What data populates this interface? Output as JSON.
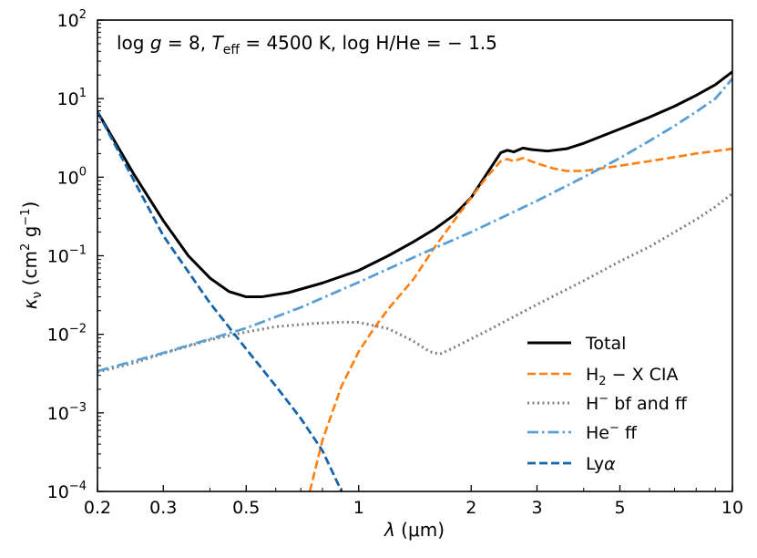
{
  "chart_data": {
    "type": "line",
    "x_scale": "log",
    "y_scale": "log",
    "xlim": [
      0.2,
      10
    ],
    "ylim": [
      0.0001,
      100
    ],
    "x_ticks": [
      {
        "value": 0.2,
        "label": "0.2"
      },
      {
        "value": 0.3,
        "label": "0.3"
      },
      {
        "value": 0.5,
        "label": "0.5"
      },
      {
        "value": 1,
        "label": "1"
      },
      {
        "value": 2,
        "label": "2"
      },
      {
        "value": 3,
        "label": "3"
      },
      {
        "value": 5,
        "label": "5"
      },
      {
        "value": 10,
        "label": "10"
      }
    ],
    "y_ticks": [
      {
        "value": 0.0001,
        "base": "10",
        "exp": "−4"
      },
      {
        "value": 0.001,
        "base": "10",
        "exp": "−3"
      },
      {
        "value": 0.01,
        "base": "10",
        "exp": "−2"
      },
      {
        "value": 0.1,
        "base": "10",
        "exp": "−1"
      },
      {
        "value": 1,
        "base": "10",
        "exp": "0"
      },
      {
        "value": 10,
        "base": "10",
        "exp": "1"
      },
      {
        "value": 100,
        "base": "10",
        "exp": "2"
      }
    ],
    "xlabel": {
      "symbol": "λ",
      "unit": " (μm)"
    },
    "ylabel": {
      "symbol": "κ",
      "sub": "ν",
      "pre": " (cm",
      "sup1": "2",
      "mid": " g",
      "sup2": "−1",
      "post": ")"
    },
    "annotation": {
      "part1": "log ",
      "g": "g",
      "part2": " = 8, ",
      "T": "T",
      "sub": "eff",
      "part3": " = 4500 K, log H/He = − 1.5"
    },
    "legend_position": "lower-right",
    "series": [
      {
        "name": "Total",
        "legend_label": "Total",
        "color": "#000000",
        "dash": "solid",
        "width": 3,
        "points": [
          [
            0.2,
            6.8
          ],
          [
            0.25,
            1.1
          ],
          [
            0.3,
            0.28
          ],
          [
            0.35,
            0.1
          ],
          [
            0.4,
            0.052
          ],
          [
            0.45,
            0.035
          ],
          [
            0.5,
            0.03
          ],
          [
            0.55,
            0.03
          ],
          [
            0.65,
            0.034
          ],
          [
            0.8,
            0.045
          ],
          [
            1.0,
            0.065
          ],
          [
            1.2,
            0.1
          ],
          [
            1.4,
            0.15
          ],
          [
            1.6,
            0.22
          ],
          [
            1.8,
            0.33
          ],
          [
            2.0,
            0.55
          ],
          [
            2.2,
            1.1
          ],
          [
            2.4,
            2.05
          ],
          [
            2.5,
            2.2
          ],
          [
            2.6,
            2.1
          ],
          [
            2.75,
            2.35
          ],
          [
            2.9,
            2.25
          ],
          [
            3.2,
            2.15
          ],
          [
            3.6,
            2.3
          ],
          [
            4,
            2.7
          ],
          [
            5,
            4.1
          ],
          [
            6,
            5.8
          ],
          [
            7,
            8
          ],
          [
            8,
            11
          ],
          [
            9,
            15
          ],
          [
            10,
            22
          ]
        ]
      },
      {
        "name": "H2-X CIA",
        "legend_label": "H",
        "legend_sub": "2",
        "legend_rest": " − X CIA",
        "color": "#ff7f0e",
        "dash": "dashed",
        "width": 2.6,
        "points": [
          [
            0.74,
            0.0001
          ],
          [
            0.8,
            0.00045
          ],
          [
            0.9,
            0.0022
          ],
          [
            1.0,
            0.006
          ],
          [
            1.1,
            0.012
          ],
          [
            1.2,
            0.021
          ],
          [
            1.4,
            0.05
          ],
          [
            1.6,
            0.13
          ],
          [
            1.8,
            0.28
          ],
          [
            2.0,
            0.55
          ],
          [
            2.2,
            1.0
          ],
          [
            2.4,
            1.6
          ],
          [
            2.5,
            1.7
          ],
          [
            2.6,
            1.6
          ],
          [
            2.75,
            1.75
          ],
          [
            3.0,
            1.5
          ],
          [
            3.3,
            1.3
          ],
          [
            3.6,
            1.2
          ],
          [
            4.0,
            1.2
          ],
          [
            5.0,
            1.4
          ],
          [
            6.0,
            1.6
          ],
          [
            7.0,
            1.8
          ],
          [
            8.0,
            2.0
          ],
          [
            9.0,
            2.15
          ],
          [
            10,
            2.3
          ]
        ]
      },
      {
        "name": "H- bf and ff",
        "legend_label": "H",
        "legend_sup": "−",
        "legend_rest": " bf and ff",
        "color": "#7f7f7f",
        "dash": "dotted",
        "width": 3,
        "points": [
          [
            0.2,
            0.0033
          ],
          [
            0.25,
            0.0043
          ],
          [
            0.3,
            0.0057
          ],
          [
            0.4,
            0.0085
          ],
          [
            0.5,
            0.0107
          ],
          [
            0.6,
            0.0125
          ],
          [
            0.75,
            0.0137
          ],
          [
            0.9,
            0.0143
          ],
          [
            1.0,
            0.0142
          ],
          [
            1.2,
            0.0118
          ],
          [
            1.4,
            0.0082
          ],
          [
            1.55,
            0.006
          ],
          [
            1.65,
            0.0056
          ],
          [
            1.8,
            0.0068
          ],
          [
            2.2,
            0.011
          ],
          [
            3.0,
            0.024
          ],
          [
            4.0,
            0.048
          ],
          [
            5.0,
            0.085
          ],
          [
            6.0,
            0.13
          ],
          [
            7.0,
            0.2
          ],
          [
            8.0,
            0.29
          ],
          [
            9.0,
            0.42
          ],
          [
            10,
            0.62
          ]
        ]
      },
      {
        "name": "He- ff",
        "legend_label": "He",
        "legend_sup": "−",
        "legend_rest": " ff",
        "color": "#5a9fd4",
        "dash": "dashdot",
        "width": 2.8,
        "points": [
          [
            0.2,
            0.0034
          ],
          [
            0.3,
            0.0058
          ],
          [
            0.5,
            0.012
          ],
          [
            0.7,
            0.022
          ],
          [
            1.0,
            0.046
          ],
          [
            1.5,
            0.11
          ],
          [
            2.0,
            0.2
          ],
          [
            3.0,
            0.5
          ],
          [
            4.0,
            1.0
          ],
          [
            5.0,
            1.75
          ],
          [
            6.0,
            2.9
          ],
          [
            7.0,
            4.5
          ],
          [
            8.0,
            6.8
          ],
          [
            9.0,
            10
          ],
          [
            10,
            18
          ]
        ]
      },
      {
        "name": "Lyα",
        "legend_label": "Ly",
        "legend_italic": "α",
        "color": "#1565a8",
        "dash": "dashed",
        "width": 2.8,
        "points": [
          [
            0.2,
            6.8
          ],
          [
            0.3,
            0.18
          ],
          [
            0.4,
            0.025
          ],
          [
            0.5,
            0.0065
          ],
          [
            0.6,
            0.0022
          ],
          [
            0.7,
            0.00085
          ],
          [
            0.8,
            0.00033
          ],
          [
            0.9,
            0.0001
          ]
        ]
      }
    ]
  }
}
